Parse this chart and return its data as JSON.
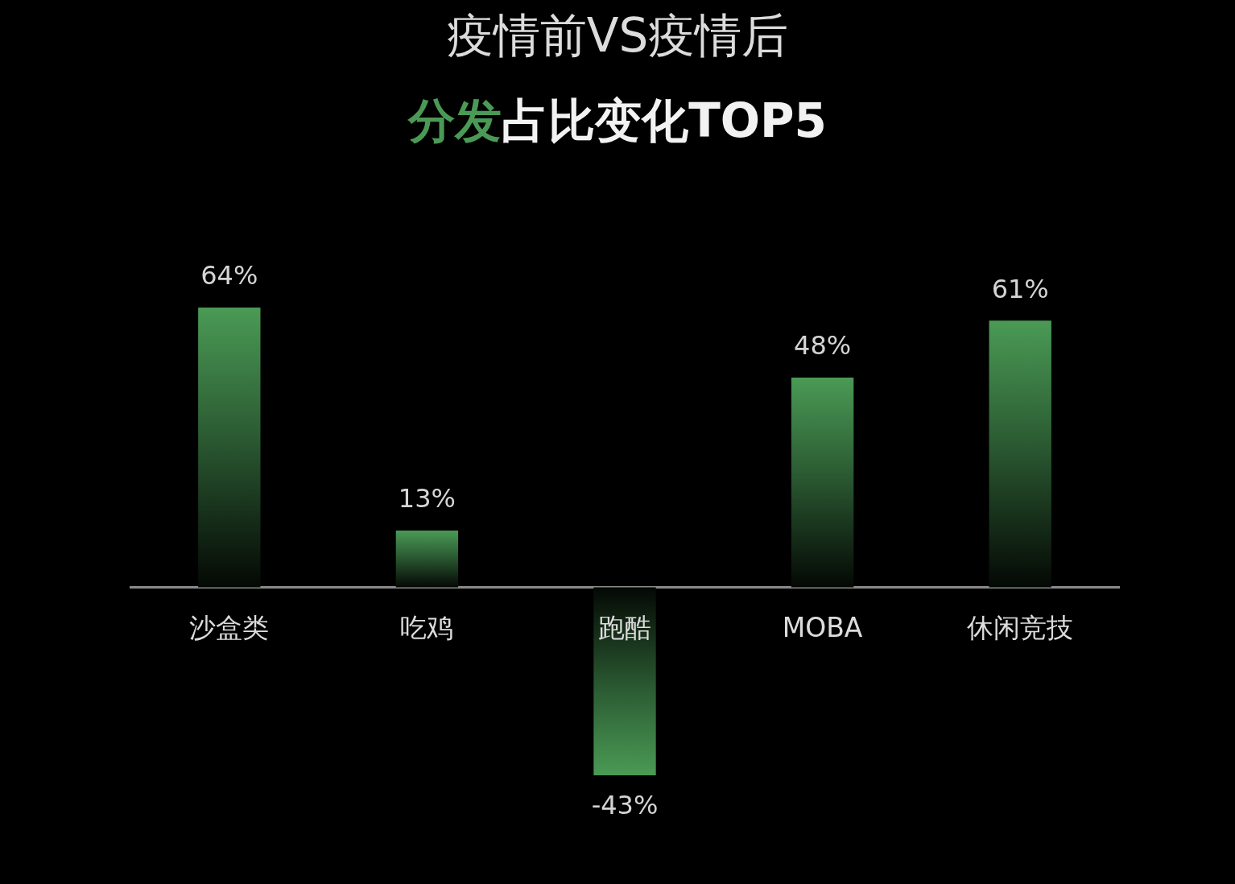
{
  "chart_data": {
    "type": "bar",
    "title": "疫情前VS疫情后",
    "subtitle": "分发占比变化TOP5",
    "categories": [
      "沙盒类",
      "吃鸡",
      "跑酷",
      "MOBA",
      "休闲竞技"
    ],
    "values": [
      64,
      13,
      -43,
      48,
      61
    ],
    "color": "#4a9a55",
    "value_labels": [
      "64%",
      "13%",
      "-43%",
      "48%",
      "61%"
    ]
  }
}
